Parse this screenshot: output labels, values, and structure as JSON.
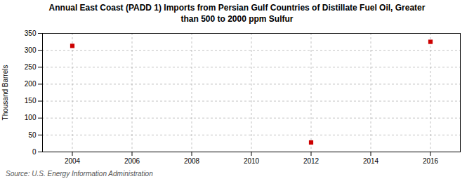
{
  "chart_data": {
    "type": "scatter",
    "title": "Annual East Coast (PADD 1) Imports from Persian Gulf Countries of Distillate Fuel Oil, Greater\nthan 500 to 2000 ppm Sulfur",
    "ylabel": "Thousand Barrels",
    "source": "Source: U.S. Energy Information Administration",
    "x": [
      2004,
      2012,
      2016
    ],
    "values": [
      313,
      28,
      325
    ],
    "color": "#cc0000",
    "marker": "square",
    "xlim": [
      2003.0,
      2017.0
    ],
    "xticks": [
      2004,
      2006,
      2008,
      2010,
      2012,
      2014,
      2016
    ],
    "ylim": [
      0,
      350
    ],
    "yticks": [
      0,
      50,
      100,
      150,
      200,
      250,
      300,
      350
    ],
    "grid": true
  }
}
